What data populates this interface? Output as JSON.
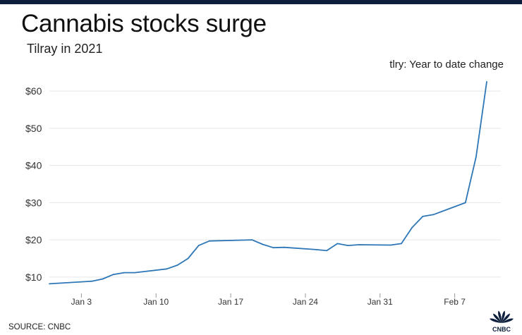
{
  "title": "Cannabis stocks surge",
  "subtitle": "Tilray in 2021",
  "legend_label": "tlry: Year to date change",
  "source": "SOURCE: CNBC",
  "logo_text": "CNBC",
  "colors": {
    "line": "#2e77b6",
    "grid": "#e6e6e6",
    "topbar": "#0d1f3c"
  },
  "chart_data": {
    "type": "line",
    "title": "Cannabis stocks surge",
    "subtitle": "Tilray in 2021",
    "xlabel": "",
    "ylabel": "",
    "x_range": [
      "2020-12-31",
      "2021-02-10"
    ],
    "ylim": [
      6,
      64
    ],
    "grid": true,
    "legend": "top-right",
    "x_ticks": [
      {
        "date": "2021-01-03",
        "label": "Jan 3"
      },
      {
        "date": "2021-01-10",
        "label": "Jan 10"
      },
      {
        "date": "2021-01-17",
        "label": "Jan 17"
      },
      {
        "date": "2021-01-24",
        "label": "Jan 24"
      },
      {
        "date": "2021-01-31",
        "label": "Jan 31"
      },
      {
        "date": "2021-02-07",
        "label": "Feb 7"
      }
    ],
    "y_ticks": [
      {
        "value": 10,
        "label": "$10"
      },
      {
        "value": 20,
        "label": "$20"
      },
      {
        "value": 30,
        "label": "$30"
      },
      {
        "value": 40,
        "label": "$40"
      },
      {
        "value": 50,
        "label": "$50"
      },
      {
        "value": 60,
        "label": "$60"
      }
    ],
    "series": [
      {
        "name": "tlry",
        "points": [
          {
            "x": "2020-12-31",
            "y": 8.2
          },
          {
            "x": "2021-01-04",
            "y": 8.9
          },
          {
            "x": "2021-01-05",
            "y": 9.5
          },
          {
            "x": "2021-01-06",
            "y": 10.7
          },
          {
            "x": "2021-01-07",
            "y": 11.2
          },
          {
            "x": "2021-01-08",
            "y": 11.2
          },
          {
            "x": "2021-01-11",
            "y": 12.2
          },
          {
            "x": "2021-01-12",
            "y": 13.2
          },
          {
            "x": "2021-01-13",
            "y": 15.0
          },
          {
            "x": "2021-01-14",
            "y": 18.5
          },
          {
            "x": "2021-01-15",
            "y": 19.7
          },
          {
            "x": "2021-01-19",
            "y": 20.0
          },
          {
            "x": "2021-01-20",
            "y": 18.8
          },
          {
            "x": "2021-01-21",
            "y": 17.9
          },
          {
            "x": "2021-01-22",
            "y": 18.0
          },
          {
            "x": "2021-01-25",
            "y": 17.4
          },
          {
            "x": "2021-01-26",
            "y": 17.1
          },
          {
            "x": "2021-01-27",
            "y": 19.0
          },
          {
            "x": "2021-01-28",
            "y": 18.5
          },
          {
            "x": "2021-01-29",
            "y": 18.7
          },
          {
            "x": "2021-02-01",
            "y": 18.6
          },
          {
            "x": "2021-02-02",
            "y": 19.0
          },
          {
            "x": "2021-02-03",
            "y": 23.3
          },
          {
            "x": "2021-02-04",
            "y": 26.3
          },
          {
            "x": "2021-02-05",
            "y": 26.8
          },
          {
            "x": "2021-02-08",
            "y": 30.0
          },
          {
            "x": "2021-02-09",
            "y": 42.3
          },
          {
            "x": "2021-02-10",
            "y": 62.5
          }
        ]
      }
    ]
  }
}
